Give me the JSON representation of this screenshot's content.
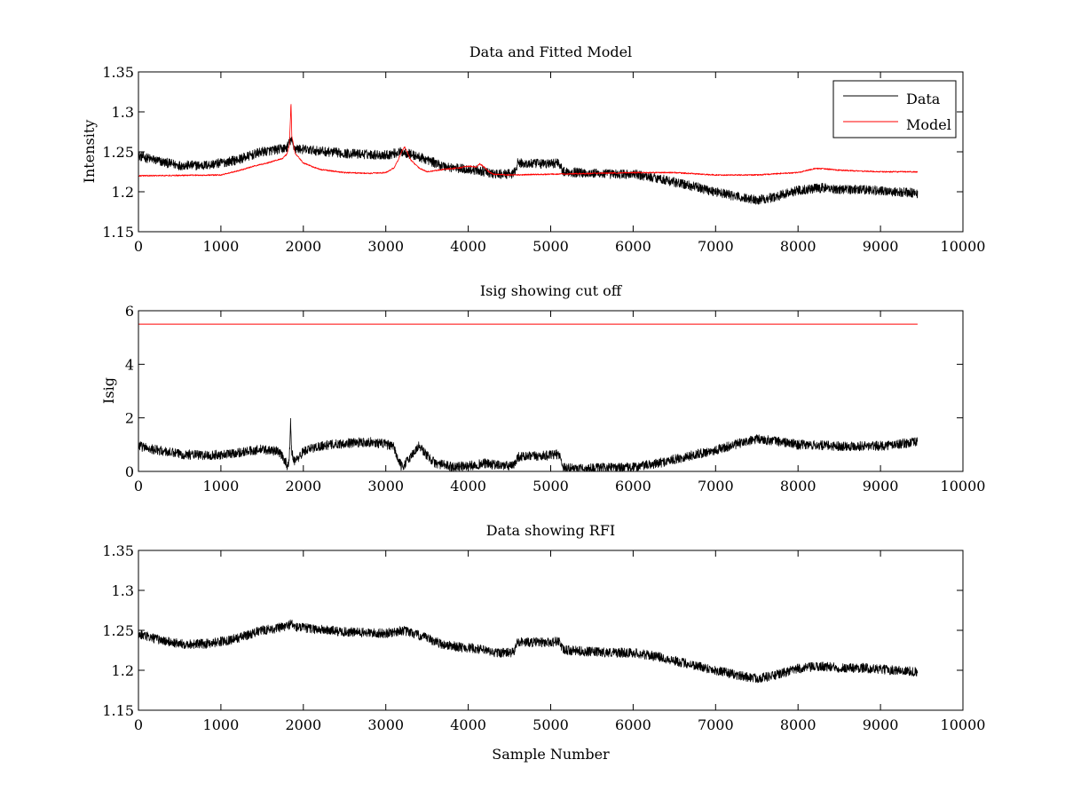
{
  "chart_data": [
    {
      "type": "line",
      "title": "Data and Fitted Model",
      "xlabel": "",
      "ylabel": "Intensity",
      "xlim": [
        0,
        10000
      ],
      "ylim": [
        1.15,
        1.35
      ],
      "xticks": [
        "0",
        "1000",
        "2000",
        "3000",
        "4000",
        "5000",
        "6000",
        "7000",
        "8000",
        "9000",
        "10000"
      ],
      "yticks": [
        "1.15",
        "1.2",
        "1.25",
        "1.3",
        "1.35"
      ],
      "legend": {
        "position": "top-right",
        "entries": [
          "Data",
          "Model"
        ]
      },
      "series": [
        {
          "name": "Data",
          "color": "#000000",
          "noise": 0.006,
          "x": [
            0,
            300,
            500,
            800,
            1000,
            1200,
            1500,
            1700,
            1800,
            1830,
            1850,
            1870,
            1900,
            2100,
            2500,
            3000,
            3200,
            3300,
            3500,
            3700,
            3900,
            4100,
            4200,
            4300,
            4500,
            4550,
            4600,
            4700,
            5000,
            5100,
            5150,
            5200,
            5500,
            5800,
            6000,
            6300,
            6500,
            6800,
            7000,
            7300,
            7500,
            7700,
            8000,
            8300,
            8500,
            8800,
            9000,
            9200,
            9450
          ],
          "values": [
            1.245,
            1.237,
            1.233,
            1.233,
            1.236,
            1.24,
            1.25,
            1.253,
            1.255,
            1.262,
            1.265,
            1.26,
            1.254,
            1.252,
            1.248,
            1.246,
            1.25,
            1.247,
            1.24,
            1.232,
            1.229,
            1.227,
            1.225,
            1.222,
            1.222,
            1.222,
            1.236,
            1.235,
            1.235,
            1.237,
            1.225,
            1.225,
            1.223,
            1.222,
            1.222,
            1.217,
            1.212,
            1.205,
            1.2,
            1.193,
            1.19,
            1.193,
            1.202,
            1.205,
            1.203,
            1.203,
            1.201,
            1.2,
            1.198
          ]
        },
        {
          "name": "Model",
          "color": "#ff0000",
          "noise": 0.0008,
          "x": [
            0,
            1000,
            1200,
            1400,
            1600,
            1750,
            1800,
            1830,
            1845,
            1850,
            1860,
            1900,
            2000,
            2200,
            2500,
            2800,
            3000,
            3100,
            3150,
            3200,
            3230,
            3260,
            3300,
            3400,
            3500,
            3700,
            3900,
            4000,
            4100,
            4140,
            4180,
            4250,
            4300,
            4500,
            5000,
            5500,
            6000,
            6500,
            7000,
            7500,
            7800,
            8000,
            8200,
            8300,
            8500,
            9000,
            9450
          ],
          "values": [
            1.22,
            1.221,
            1.226,
            1.232,
            1.237,
            1.242,
            1.247,
            1.258,
            1.295,
            1.313,
            1.27,
            1.248,
            1.236,
            1.228,
            1.224,
            1.223,
            1.224,
            1.23,
            1.24,
            1.252,
            1.256,
            1.25,
            1.24,
            1.23,
            1.225,
            1.228,
            1.23,
            1.232,
            1.231,
            1.235,
            1.232,
            1.225,
            1.222,
            1.221,
            1.222,
            1.223,
            1.224,
            1.224,
            1.221,
            1.221,
            1.223,
            1.224,
            1.229,
            1.229,
            1.227,
            1.225,
            1.225
          ]
        }
      ]
    },
    {
      "type": "line",
      "title": "Isig showing cut off",
      "xlabel": "",
      "ylabel": "Isig",
      "xlim": [
        0,
        10000
      ],
      "ylim": [
        0,
        6
      ],
      "xticks": [
        "0",
        "1000",
        "2000",
        "3000",
        "4000",
        "5000",
        "6000",
        "7000",
        "8000",
        "9000",
        "10000"
      ],
      "yticks": [
        "0",
        "2",
        "4",
        "6"
      ],
      "series": [
        {
          "color": "#000000",
          "noise": 0.18,
          "clip_min": 0,
          "x": [
            0,
            300,
            500,
            800,
            1000,
            1200,
            1500,
            1700,
            1780,
            1800,
            1830,
            1845,
            1860,
            1900,
            2000,
            2200,
            2500,
            2800,
            3000,
            3100,
            3150,
            3200,
            3300,
            3400,
            3500,
            3600,
            3800,
            4000,
            4100,
            4200,
            4300,
            4500,
            4550,
            4600,
            4700,
            5000,
            5100,
            5150,
            5200,
            5500,
            6000,
            6300,
            6500,
            7000,
            7300,
            7500,
            7700,
            8000,
            8500,
            9000,
            9450
          ],
          "values": [
            0.95,
            0.75,
            0.65,
            0.6,
            0.62,
            0.7,
            0.82,
            0.75,
            0.4,
            0.2,
            0.45,
            1.8,
            0.7,
            0.35,
            0.75,
            0.95,
            1.05,
            1.1,
            1.02,
            0.9,
            0.4,
            0.15,
            0.55,
            0.95,
            0.6,
            0.3,
            0.18,
            0.2,
            0.25,
            0.3,
            0.25,
            0.2,
            0.2,
            0.55,
            0.55,
            0.6,
            0.65,
            0.2,
            0.12,
            0.12,
            0.15,
            0.3,
            0.45,
            0.8,
            1.05,
            1.2,
            1.15,
            1.0,
            0.95,
            0.95,
            1.1
          ]
        },
        {
          "color": "#ff0000",
          "noise": 0,
          "x": [
            0,
            9450
          ],
          "values": [
            5.5,
            5.5
          ]
        }
      ]
    },
    {
      "type": "line",
      "title": "Data showing RFI",
      "xlabel": "Sample Number",
      "ylabel": "",
      "xlim": [
        0,
        10000
      ],
      "ylim": [
        1.15,
        1.35
      ],
      "xticks": [
        "0",
        "1000",
        "2000",
        "3000",
        "4000",
        "5000",
        "6000",
        "7000",
        "8000",
        "9000",
        "10000"
      ],
      "yticks": [
        "1.15",
        "1.2",
        "1.25",
        "1.3",
        "1.35"
      ],
      "series": [
        {
          "color": "#000000",
          "noise": 0.006,
          "x": [
            0,
            300,
            500,
            800,
            1000,
            1200,
            1500,
            1700,
            1800,
            1850,
            1900,
            2100,
            2500,
            3000,
            3200,
            3300,
            3500,
            3700,
            3900,
            4100,
            4200,
            4300,
            4500,
            4550,
            4600,
            4700,
            5000,
            5100,
            5150,
            5200,
            5500,
            5800,
            6000,
            6300,
            6500,
            6800,
            7000,
            7300,
            7500,
            7700,
            8000,
            8300,
            8500,
            8800,
            9000,
            9200,
            9450
          ],
          "values": [
            1.245,
            1.237,
            1.233,
            1.233,
            1.236,
            1.24,
            1.25,
            1.253,
            1.255,
            1.259,
            1.254,
            1.252,
            1.248,
            1.246,
            1.25,
            1.247,
            1.24,
            1.232,
            1.229,
            1.227,
            1.225,
            1.222,
            1.222,
            1.222,
            1.236,
            1.235,
            1.235,
            1.237,
            1.225,
            1.225,
            1.223,
            1.222,
            1.222,
            1.217,
            1.212,
            1.205,
            1.2,
            1.193,
            1.19,
            1.193,
            1.202,
            1.205,
            1.203,
            1.203,
            1.201,
            1.2,
            1.198
          ]
        }
      ]
    }
  ]
}
